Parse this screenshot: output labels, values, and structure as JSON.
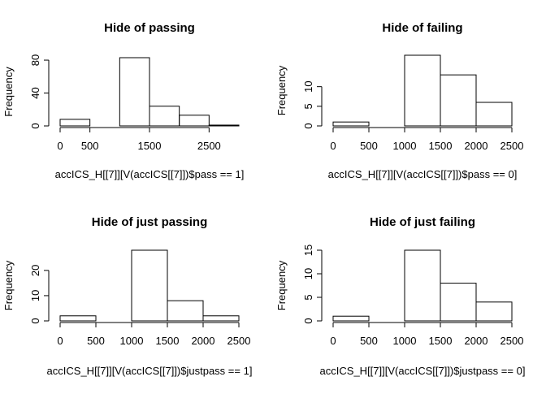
{
  "chart_data": [
    {
      "type": "bar",
      "title": "Hide of passing",
      "xlabel": "accICS_H[[7]][V(accICS[[7]])$pass == 1]",
      "ylabel": "Frequency",
      "bins": [
        [
          0,
          500
        ],
        [
          500,
          1000
        ],
        [
          1000,
          1500
        ],
        [
          1500,
          2000
        ],
        [
          2000,
          2500
        ],
        [
          2500,
          3000
        ]
      ],
      "values": [
        8,
        0,
        83,
        24,
        13,
        1
      ],
      "xlim": [
        0,
        3000
      ],
      "ylim": [
        0,
        83
      ],
      "xticks": [
        0,
        500,
        1500,
        2500
      ],
      "yticks": [
        0,
        40,
        80
      ]
    },
    {
      "type": "bar",
      "title": "Hide of failing",
      "xlabel": "accICS_H[[7]][V(accICS[[7]])$pass == 0]",
      "ylabel": "Frequency",
      "bins": [
        [
          0,
          500
        ],
        [
          500,
          1000
        ],
        [
          1000,
          1500
        ],
        [
          1500,
          2000
        ],
        [
          2000,
          2500
        ]
      ],
      "values": [
        1,
        0,
        18,
        13,
        6
      ],
      "xlim": [
        0,
        2500
      ],
      "ylim": [
        0,
        18
      ],
      "xticks": [
        0,
        500,
        1000,
        1500,
        2000,
        2500
      ],
      "yticks": [
        0,
        5,
        10
      ]
    },
    {
      "type": "bar",
      "title": "Hide of just passing",
      "xlabel": "accICS_H[[7]][V(accICS[[7]])$justpass == 1]",
      "ylabel": "Frequency",
      "bins": [
        [
          0,
          500
        ],
        [
          500,
          1000
        ],
        [
          1000,
          1500
        ],
        [
          1500,
          2000
        ],
        [
          2000,
          2500
        ]
      ],
      "values": [
        2,
        0,
        28,
        8,
        2
      ],
      "xlim": [
        0,
        2500
      ],
      "ylim": [
        0,
        28
      ],
      "xticks": [
        0,
        500,
        1000,
        1500,
        2000,
        2500
      ],
      "yticks": [
        0,
        10,
        20
      ]
    },
    {
      "type": "bar",
      "title": "Hide of just failing",
      "xlabel": "accICS_H[[7]][V(accICS[[7]])$justpass == 0]",
      "ylabel": "Frequency",
      "bins": [
        [
          0,
          500
        ],
        [
          500,
          1000
        ],
        [
          1000,
          1500
        ],
        [
          1500,
          2000
        ],
        [
          2000,
          2500
        ]
      ],
      "values": [
        1,
        0,
        15,
        8,
        4
      ],
      "xlim": [
        0,
        2500
      ],
      "ylim": [
        0,
        15
      ],
      "xticks": [
        0,
        500,
        1000,
        1500,
        2000,
        2500
      ],
      "yticks": [
        0,
        5,
        10,
        15
      ]
    }
  ]
}
